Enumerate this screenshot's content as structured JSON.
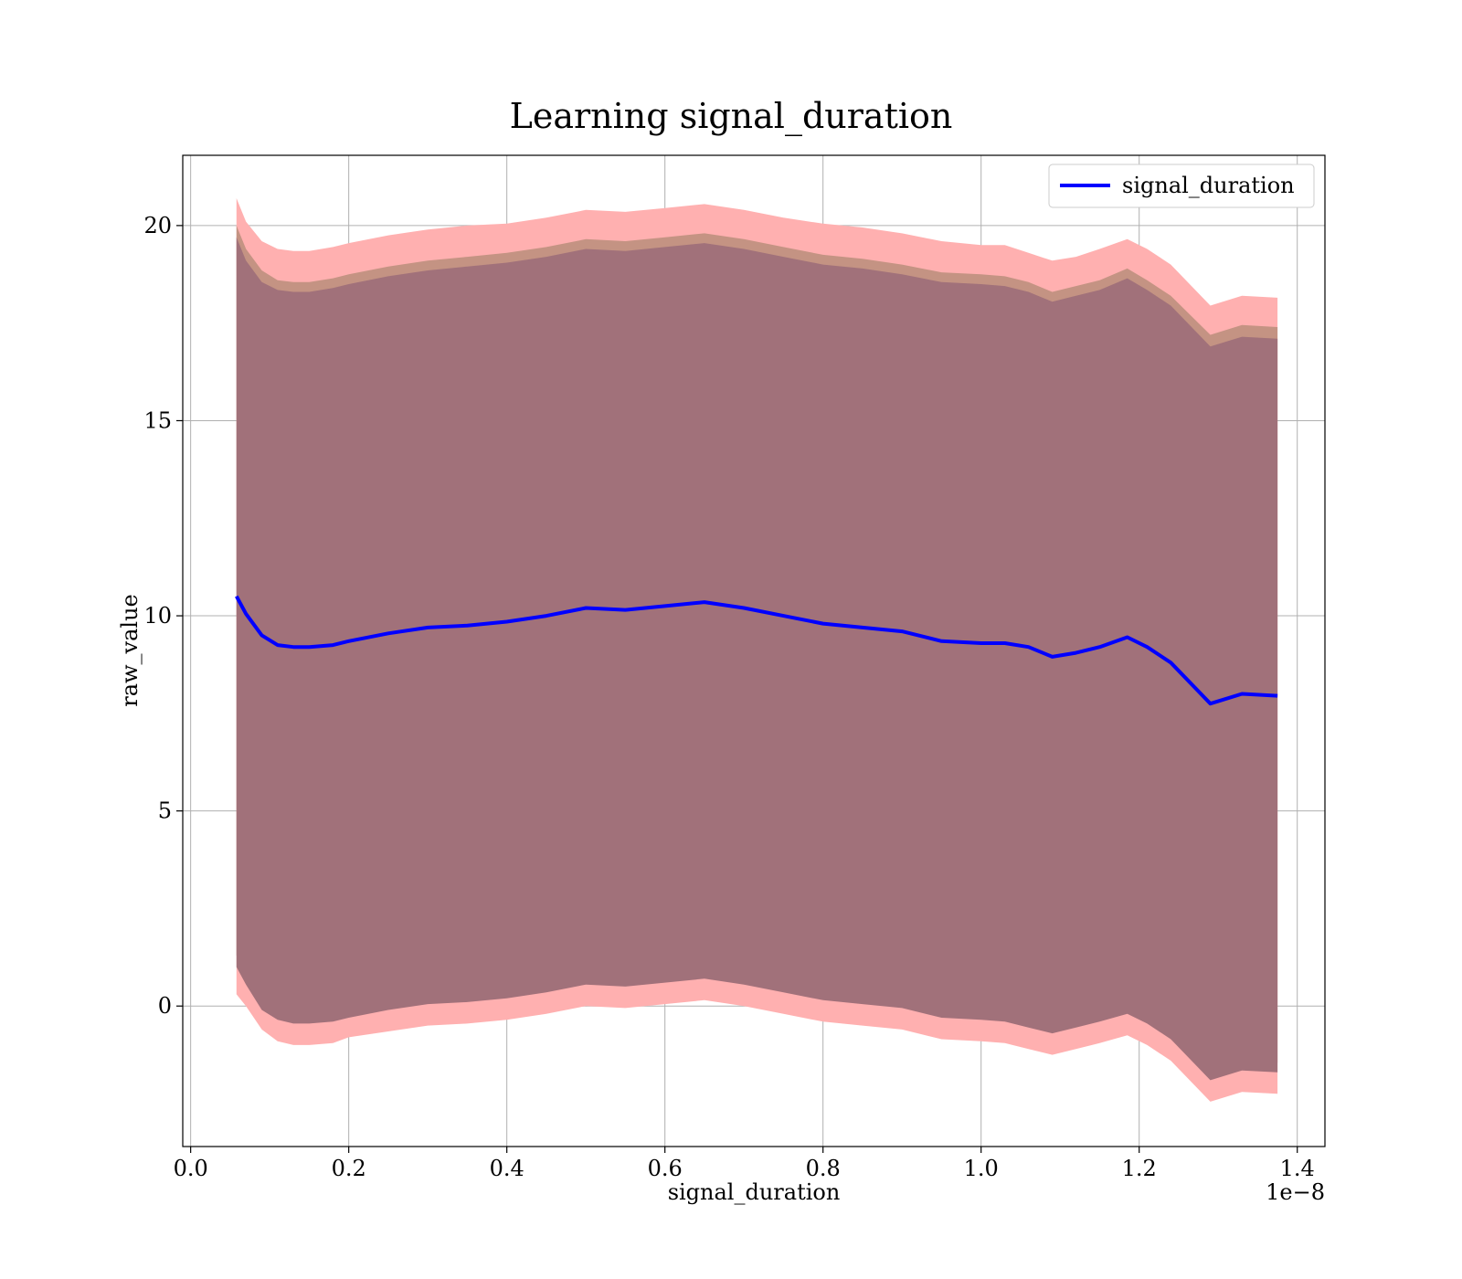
{
  "chart_data": {
    "type": "area",
    "title": "Learning signal_duration",
    "xlabel": "signal_duration",
    "ylabel": "raw_value",
    "x_offset_label": "1e−8",
    "xlim": [
      -0.01,
      1.435
    ],
    "ylim": [
      -3.6,
      21.8
    ],
    "x_ticks": [
      0.0,
      0.2,
      0.4,
      0.6,
      0.8,
      1.0,
      1.2,
      1.4
    ],
    "x_tick_labels": [
      "0.0",
      "0.2",
      "0.4",
      "0.6",
      "0.8",
      "1.0",
      "1.2",
      "1.4"
    ],
    "y_ticks": [
      0,
      5,
      10,
      15,
      20
    ],
    "y_tick_labels": [
      "0",
      "5",
      "10",
      "15",
      "20"
    ],
    "grid": true,
    "legend": {
      "position": "top-right",
      "entries": [
        "signal_duration"
      ]
    },
    "colors": {
      "line": "#0000ff",
      "band_outer": "#ffb0b0",
      "band_middle": "#c49383",
      "band_inner": "#a1717a"
    },
    "x": [
      0.058,
      0.07,
      0.09,
      0.11,
      0.13,
      0.15,
      0.18,
      0.2,
      0.25,
      0.3,
      0.35,
      0.4,
      0.45,
      0.5,
      0.55,
      0.6,
      0.65,
      0.7,
      0.75,
      0.8,
      0.85,
      0.9,
      0.95,
      1.0,
      1.03,
      1.06,
      1.09,
      1.12,
      1.15,
      1.185,
      1.21,
      1.24,
      1.29,
      1.33,
      1.375
    ],
    "series": [
      {
        "name": "signal_duration",
        "values": [
          10.5,
          10.05,
          9.5,
          9.25,
          9.2,
          9.2,
          9.25,
          9.35,
          9.55,
          9.7,
          9.75,
          9.85,
          10.0,
          10.2,
          10.15,
          10.25,
          10.35,
          10.2,
          10.0,
          9.8,
          9.7,
          9.6,
          9.35,
          9.3,
          9.3,
          9.2,
          8.95,
          9.05,
          9.2,
          9.45,
          9.2,
          8.8,
          7.75,
          8.0,
          7.95
        ]
      }
    ],
    "bands": [
      {
        "upper": [
          20.7,
          20.1,
          19.6,
          19.4,
          19.35,
          19.35,
          19.45,
          19.55,
          19.75,
          19.9,
          20.0,
          20.05,
          20.2,
          20.4,
          20.35,
          20.45,
          20.55,
          20.4,
          20.2,
          20.05,
          19.95,
          19.8,
          19.6,
          19.5,
          19.5,
          19.3,
          19.1,
          19.2,
          19.4,
          19.65,
          19.4,
          19.0,
          17.95,
          18.2,
          18.15
        ],
        "lower": [
          0.3,
          0.0,
          -0.6,
          -0.9,
          -1.0,
          -1.0,
          -0.95,
          -0.8,
          -0.65,
          -0.5,
          -0.45,
          -0.35,
          -0.2,
          0.0,
          -0.05,
          0.05,
          0.15,
          0.0,
          -0.2,
          -0.4,
          -0.5,
          -0.6,
          -0.85,
          -0.9,
          -0.95,
          -1.1,
          -1.25,
          -1.1,
          -0.95,
          -0.75,
          -1.0,
          -1.4,
          -2.45,
          -2.2,
          -2.25
        ]
      },
      {
        "upper": [
          20.0,
          19.4,
          18.85,
          18.6,
          18.55,
          18.55,
          18.65,
          18.75,
          18.95,
          19.1,
          19.2,
          19.3,
          19.45,
          19.65,
          19.6,
          19.7,
          19.8,
          19.65,
          19.45,
          19.25,
          19.15,
          19.0,
          18.8,
          18.75,
          18.7,
          18.55,
          18.3,
          18.45,
          18.6,
          18.9,
          18.6,
          18.2,
          17.2,
          17.45,
          17.4
        ],
        "lower": [
          1.3,
          0.85,
          0.15,
          -0.1,
          -0.2,
          -0.2,
          -0.15,
          -0.05,
          0.15,
          0.3,
          0.35,
          0.45,
          0.6,
          0.8,
          0.75,
          0.85,
          0.95,
          0.8,
          0.6,
          0.4,
          0.3,
          0.2,
          -0.05,
          -0.1,
          -0.15,
          -0.3,
          -0.45,
          -0.3,
          -0.15,
          0.05,
          -0.2,
          -0.6,
          -1.65,
          -1.4,
          -1.45
        ]
      },
      {
        "upper": [
          19.7,
          19.1,
          18.55,
          18.35,
          18.3,
          18.3,
          18.4,
          18.5,
          18.7,
          18.85,
          18.95,
          19.05,
          19.2,
          19.4,
          19.35,
          19.45,
          19.55,
          19.4,
          19.2,
          19.0,
          18.9,
          18.75,
          18.55,
          18.5,
          18.45,
          18.3,
          18.05,
          18.2,
          18.35,
          18.65,
          18.35,
          17.95,
          16.9,
          17.15,
          17.1
        ],
        "lower": [
          1.0,
          0.55,
          -0.1,
          -0.35,
          -0.45,
          -0.45,
          -0.4,
          -0.3,
          -0.1,
          0.05,
          0.1,
          0.2,
          0.35,
          0.55,
          0.5,
          0.6,
          0.7,
          0.55,
          0.35,
          0.15,
          0.05,
          -0.05,
          -0.3,
          -0.35,
          -0.4,
          -0.55,
          -0.7,
          -0.55,
          -0.4,
          -0.2,
          -0.45,
          -0.85,
          -1.9,
          -1.65,
          -1.7
        ]
      }
    ]
  }
}
